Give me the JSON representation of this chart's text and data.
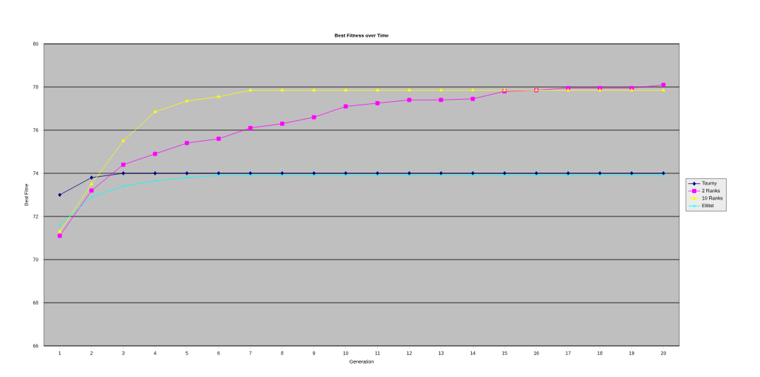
{
  "chart_data": {
    "type": "line",
    "title": "Best Fitness over Time",
    "xlabel": "Generation",
    "ylabel": "Best Fitne",
    "categories": [
      "1",
      "2",
      "3",
      "4",
      "5",
      "6",
      "7",
      "8",
      "9",
      "10",
      "11",
      "12",
      "13",
      "14",
      "15",
      "16",
      "17",
      "18",
      "19",
      "20"
    ],
    "series": [
      {
        "name": "Tourny",
        "color": "#000080",
        "marker": "diamond",
        "values": [
          73.0,
          73.8,
          74,
          74,
          74,
          74,
          74,
          74,
          74,
          74,
          74,
          74,
          74,
          74,
          74,
          74,
          74,
          74,
          74,
          74
        ]
      },
      {
        "name": "2 Ranks",
        "color": "#ff00ff",
        "marker": "square",
        "values": [
          71.1,
          73.2,
          74.4,
          74.9,
          75.4,
          75.6,
          76.1,
          76.3,
          76.6,
          77.1,
          77.25,
          77.4,
          77.4,
          77.45,
          77.8,
          77.85,
          77.95,
          77.95,
          77.95,
          78.1
        ]
      },
      {
        "name": "10 Ranks",
        "color": "#ffff00",
        "marker": "triangle",
        "values": [
          71.3,
          73.5,
          75.5,
          76.85,
          77.35,
          77.55,
          77.85,
          77.85,
          77.85,
          77.85,
          77.85,
          77.85,
          77.85,
          77.85,
          77.85,
          77.85,
          77.85,
          77.85,
          77.85,
          77.85
        ]
      },
      {
        "name": "Elitist",
        "color": "#00ffff",
        "marker": "cross",
        "values": [
          71.6,
          72.9,
          73.4,
          73.65,
          73.8,
          73.9,
          73.9,
          73.9,
          73.9,
          73.9,
          73.9,
          73.9,
          73.9,
          73.9,
          73.9,
          73.9,
          73.9,
          73.9,
          73.9,
          73.9
        ]
      }
    ],
    "ylim": [
      66,
      80
    ],
    "yticks": [
      66,
      68,
      70,
      72,
      74,
      76,
      78,
      80
    ],
    "grid": "y",
    "legend": "right"
  }
}
